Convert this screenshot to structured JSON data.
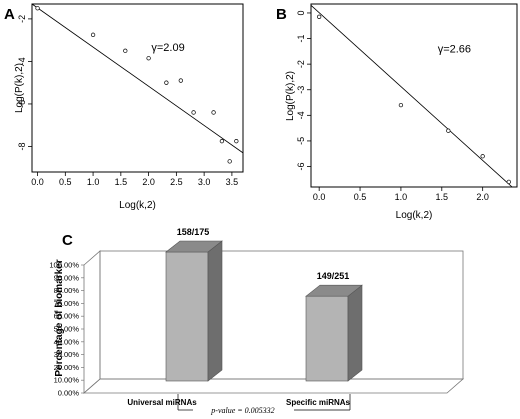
{
  "panels": {
    "a_letter": "A",
    "b_letter": "B",
    "c_letter": "C"
  },
  "chart_data": [
    {
      "type": "scatter",
      "panel": "A",
      "xlabel": "Log(k,2)",
      "ylabel": "Log(P(k),2)",
      "xlim": [
        -0.1,
        3.7
      ],
      "ylim": [
        -9.2,
        -1.3
      ],
      "xticks": [
        "0.0",
        "0.5",
        "1.0",
        "1.5",
        "2.0",
        "2.5",
        "3.0",
        "3.5"
      ],
      "yticks": [
        "-2",
        "-4",
        "-6",
        "-8"
      ],
      "xtick_values": [
        0,
        0.5,
        1,
        1.5,
        2,
        2.5,
        3,
        3.5
      ],
      "ytick_values": [
        -2,
        -4,
        -6,
        -8
      ],
      "points": [
        {
          "x": 0.0,
          "y": -1.5
        },
        {
          "x": 1.0,
          "y": -2.75
        },
        {
          "x": 1.58,
          "y": -3.5
        },
        {
          "x": 2.0,
          "y": -3.85
        },
        {
          "x": 2.32,
          "y": -5.0
        },
        {
          "x": 2.58,
          "y": -4.9
        },
        {
          "x": 2.81,
          "y": -6.4
        },
        {
          "x": 3.17,
          "y": -6.4
        },
        {
          "x": 3.32,
          "y": -7.75
        },
        {
          "x": 3.46,
          "y": -8.7
        },
        {
          "x": 3.58,
          "y": -7.75
        }
      ],
      "fit_line": [
        {
          "x": -0.1,
          "y": -1.3
        },
        {
          "x": 3.7,
          "y": -8.3
        }
      ],
      "annotation": "γ=2.09",
      "annotation_pos": {
        "x": 2.05,
        "y": -3.5
      }
    },
    {
      "type": "scatter",
      "panel": "B",
      "xlabel": "Log(k,2)",
      "ylabel": "Log(P(k),2)",
      "xlim": [
        -0.1,
        2.42
      ],
      "ylim": [
        -6.8,
        0.35
      ],
      "xticks": [
        "0.0",
        "0.5",
        "1.0",
        "1.5",
        "2.0"
      ],
      "yticks": [
        "0",
        "-1",
        "-2",
        "-3",
        "-4",
        "-5",
        "-6"
      ],
      "xtick_values": [
        0,
        0.5,
        1,
        1.5,
        2
      ],
      "ytick_values": [
        0,
        -1,
        -2,
        -3,
        -4,
        -5,
        -6
      ],
      "points": [
        {
          "x": 0.0,
          "y": -0.15
        },
        {
          "x": 1.0,
          "y": -3.6
        },
        {
          "x": 1.58,
          "y": -4.6
        },
        {
          "x": 2.0,
          "y": -5.6
        },
        {
          "x": 2.32,
          "y": -6.6
        }
      ],
      "fit_line": [
        {
          "x": -0.1,
          "y": 0.3
        },
        {
          "x": 2.36,
          "y": -6.8
        }
      ],
      "annotation": "γ=2.66",
      "annotation_pos": {
        "x": 1.45,
        "y": -1.55
      }
    },
    {
      "type": "bar",
      "panel": "C",
      "ylabel": "Percentage of biomarker",
      "categories": [
        "Universal miRNAs",
        "Specific miRNAs"
      ],
      "values": [
        90.29,
        59.36
      ],
      "bar_labels": [
        "158/175",
        "149/251"
      ],
      "ylim": [
        0,
        100
      ],
      "yticks": [
        "0.00%",
        "10.00%",
        "20.00%",
        "30.00%",
        "40.00%",
        "50.00%",
        "60.00%",
        "70.00%",
        "80.00%",
        "90.00%",
        "100.00%"
      ],
      "annotation": "p-value = 0.005332",
      "colors": {
        "front": "#b4b4b4",
        "side": "#6e6e6e",
        "top": "#8a8a8a"
      }
    }
  ]
}
